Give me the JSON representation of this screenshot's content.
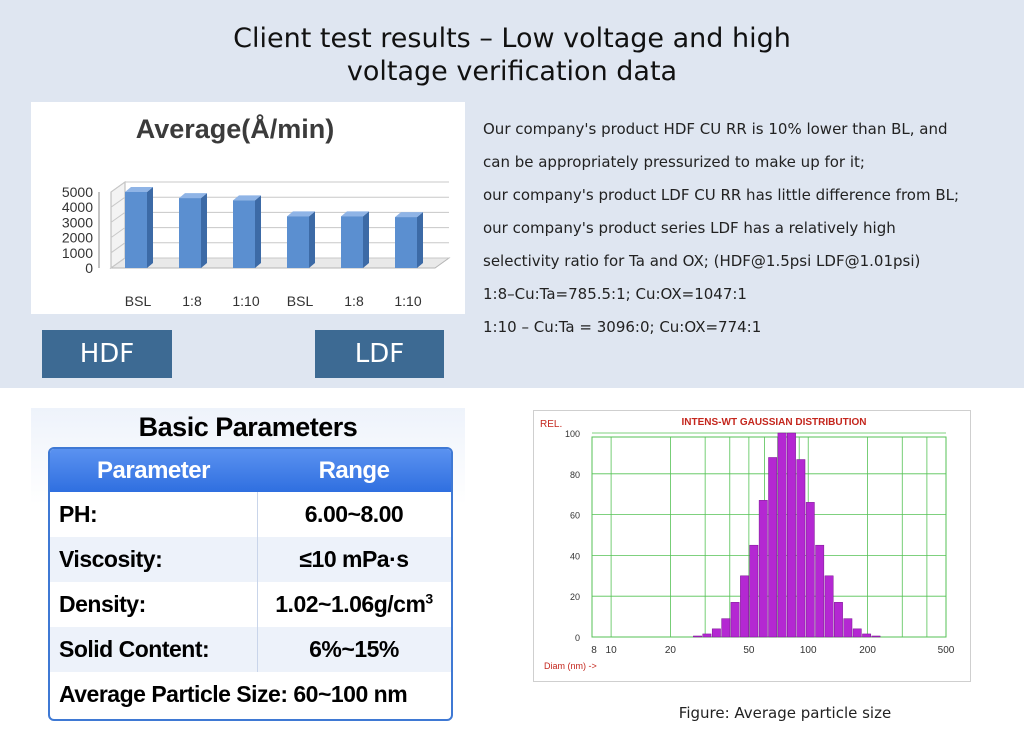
{
  "title": "Client test results – Low voltage and high voltage verification data",
  "title_lines": [
    "Client test results – Low voltage and high",
    "voltage verification data"
  ],
  "tags": {
    "hdf": "HDF",
    "ldf": "LDF"
  },
  "description": [
    "Our company's product HDF CU RR is 10% lower than BL, and",
    "can be appropriately pressurized to make up for it;",
    "our company's product LDF CU RR has little difference from BL;",
    "our company's product series LDF has a relatively high",
    "selectivity ratio for Ta and OX; (HDF@1.5psi LDF@1.01psi)",
    "1:8–Cu:Ta=785.5:1; Cu:OX=1047:1",
    "1:10 – Cu:Ta = 3096:0; Cu:OX=774:1"
  ],
  "parameters": {
    "title": "Basic Parameters",
    "headers": [
      "Parameter",
      "Range"
    ],
    "rows": [
      {
        "name": "PH:",
        "value": "6.00~8.00"
      },
      {
        "name": "Viscosity:",
        "value": "≤10 mPa·s"
      },
      {
        "name": "Density:",
        "value": "1.02~1.06g/cm",
        "sup": "3"
      },
      {
        "name": "Solid Content:",
        "value": "6%~15%"
      }
    ],
    "last_row": "Average Particle Size: 60~100 nm"
  },
  "colors": {
    "band": "#dfe6f1",
    "tag": "#3d6a93",
    "bar_blue": "#5b8fd0",
    "table_blue": "#2f6fe0",
    "hist_purple": "#b428d2",
    "grid_green": "#55c255",
    "title_red": "#c4261d"
  },
  "caption": "Figure: Average particle size",
  "chart_data": [
    {
      "type": "bar",
      "title": "Average(Å/min)",
      "categories": [
        "BSL",
        "1:8",
        "1:10",
        "BSL",
        "1:8",
        "1:10"
      ],
      "values": [
        5000,
        4600,
        4450,
        3400,
        3400,
        3350
      ],
      "yticks": [
        "5000",
        "4000",
        "3000",
        "2000",
        "1000",
        "0"
      ],
      "ylim": [
        0,
        5000
      ],
      "grid": true,
      "style": "3d"
    },
    {
      "type": "bar",
      "title": "INTENS-WT GAUSSIAN DISTRIBUTION",
      "ylabel": "REL.",
      "xlabel": "Diam (nm) ->",
      "xscale": "log",
      "xticks": [
        "8",
        "10",
        "20",
        "50",
        "100",
        "200",
        "500"
      ],
      "yticks": [
        "100",
        "80",
        "60",
        "40",
        "20",
        "0"
      ],
      "ylim": [
        0,
        100
      ],
      "grid": true,
      "bins": [
        {
          "d": 27.6,
          "v": 0.5
        },
        {
          "d": 30.8,
          "v": 1.5
        },
        {
          "d": 34.4,
          "v": 4
        },
        {
          "d": 38.4,
          "v": 9
        },
        {
          "d": 42.8,
          "v": 17
        },
        {
          "d": 47.8,
          "v": 30
        },
        {
          "d": 53.3,
          "v": 45
        },
        {
          "d": 59.5,
          "v": 67
        },
        {
          "d": 66.4,
          "v": 88
        },
        {
          "d": 74.1,
          "v": 100
        },
        {
          "d": 82.7,
          "v": 100
        },
        {
          "d": 92.3,
          "v": 87
        },
        {
          "d": 103,
          "v": 66
        },
        {
          "d": 115,
          "v": 45
        },
        {
          "d": 128.3,
          "v": 30
        },
        {
          "d": 143.2,
          "v": 17
        },
        {
          "d": 159.8,
          "v": 9
        },
        {
          "d": 178.3,
          "v": 4
        },
        {
          "d": 199,
          "v": 1.5
        },
        {
          "d": 222,
          "v": 0.5
        }
      ]
    }
  ]
}
